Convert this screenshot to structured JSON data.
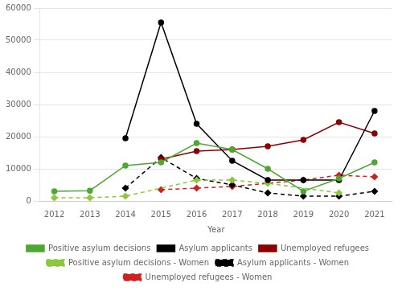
{
  "chart_data": {
    "type": "line",
    "xlabel": "Year",
    "x": [
      2012,
      2013,
      2014,
      2015,
      2016,
      2017,
      2018,
      2019,
      2020,
      2021
    ],
    "xlim": [
      2011.6,
      2021.5
    ],
    "xticks": [
      2012,
      2013,
      2014,
      2015,
      2016,
      2017,
      2018,
      2019,
      2020,
      2021
    ],
    "ylim": [
      0,
      60000
    ],
    "yticks": [
      0,
      10000,
      20000,
      30000,
      40000,
      50000,
      60000
    ],
    "grid": "y",
    "legend": "bottom",
    "series": [
      {
        "name": "Positive asylum decisions",
        "color": "#4da832",
        "line_style": "solid",
        "marker": "circle",
        "values": [
          3000,
          3200,
          11000,
          12000,
          18000,
          16000,
          10000,
          3000,
          7000,
          12000
        ]
      },
      {
        "name": "Asylum applicants",
        "color": "#000000",
        "line_style": "solid",
        "marker": "circle",
        "values": [
          null,
          null,
          19500,
          55500,
          24000,
          12500,
          6500,
          6500,
          6500,
          28000
        ]
      },
      {
        "name": "Unemployed refugees",
        "color": "#8b0000",
        "line_style": "solid",
        "marker": "circle",
        "values": [
          null,
          null,
          null,
          13000,
          15500,
          16000,
          17000,
          19000,
          24500,
          21000
        ]
      },
      {
        "name": "Positive asylum decisions - Women",
        "color": "#8dc63f",
        "line_style": "dashed",
        "marker": "diamond",
        "values": [
          1000,
          1000,
          1500,
          null,
          6500,
          6500,
          5500,
          null,
          2500,
          null
        ]
      },
      {
        "name": "Asylum applicants - Women",
        "color": "#000000",
        "line_style": "dashed",
        "marker": "diamond",
        "values": [
          null,
          null,
          4000,
          13500,
          7000,
          5000,
          2500,
          1500,
          1500,
          3000
        ]
      },
      {
        "name": "Unemployed refugees - Women",
        "color": "#cc2222",
        "line_style": "dashed",
        "marker": "diamond",
        "values": [
          null,
          null,
          null,
          3500,
          4000,
          4500,
          null,
          6500,
          8000,
          7500
        ]
      }
    ]
  }
}
